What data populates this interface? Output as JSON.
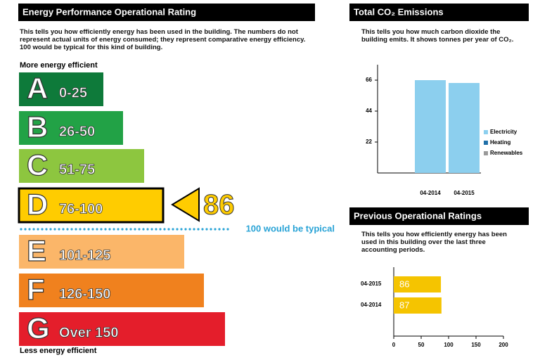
{
  "rating": {
    "title": "Energy Performance Operational Rating",
    "description": "This tells you how efficiently energy has been used in the building. The numbers do not represent actual units of energy consumed; they represent comparative energy efficiency. 100 would be typical for this kind of building.",
    "top_label": "More energy efficient",
    "bottom_label": "Less energy efficient",
    "bands": [
      {
        "letter": "A",
        "range": "0-25",
        "color": "#0e7a3a"
      },
      {
        "letter": "B",
        "range": "26-50",
        "color": "#22a246"
      },
      {
        "letter": "C",
        "range": "51-75",
        "color": "#8dc63f"
      },
      {
        "letter": "D",
        "range": "76-100",
        "color": "#ffcc00"
      },
      {
        "letter": "E",
        "range": "101-125",
        "color": "#fbb669"
      },
      {
        "letter": "F",
        "range": "126-150",
        "color": "#f0811e"
      },
      {
        "letter": "G",
        "range": "Over 150",
        "color": "#e41e2b"
      }
    ],
    "current": 86,
    "typical_label": "100 would be typical"
  },
  "co2": {
    "title": "Total CO₂ Emissions",
    "description": "This tells you how much carbon dioxide the building emits. It shows tonnes per year of CO₂.",
    "chart": {
      "type": "bar",
      "categories": [
        "04-2014",
        "04-2015"
      ],
      "series": [
        {
          "name": "Electricity",
          "color": "#8ccfee",
          "values": [
            66,
            64
          ]
        },
        {
          "name": "Heating",
          "color": "#1f6fa8",
          "values": [
            0,
            0
          ]
        },
        {
          "name": "Renewables",
          "color": "#9a9a9a",
          "values": [
            0,
            0
          ]
        }
      ],
      "ylim": [
        0,
        77
      ],
      "yticks": [
        22,
        44,
        66
      ]
    }
  },
  "previous": {
    "title": "Previous Operational Ratings",
    "description": "This tells you how efficiently energy has been used in this building over the last three accounting periods.",
    "chart": {
      "type": "hbar",
      "categories": [
        "04-2015",
        "04-2014"
      ],
      "values": [
        86,
        87
      ],
      "color": "#f5c400",
      "xlim": [
        0,
        200
      ],
      "xticks": [
        0,
        50,
        100,
        150,
        200
      ]
    }
  }
}
